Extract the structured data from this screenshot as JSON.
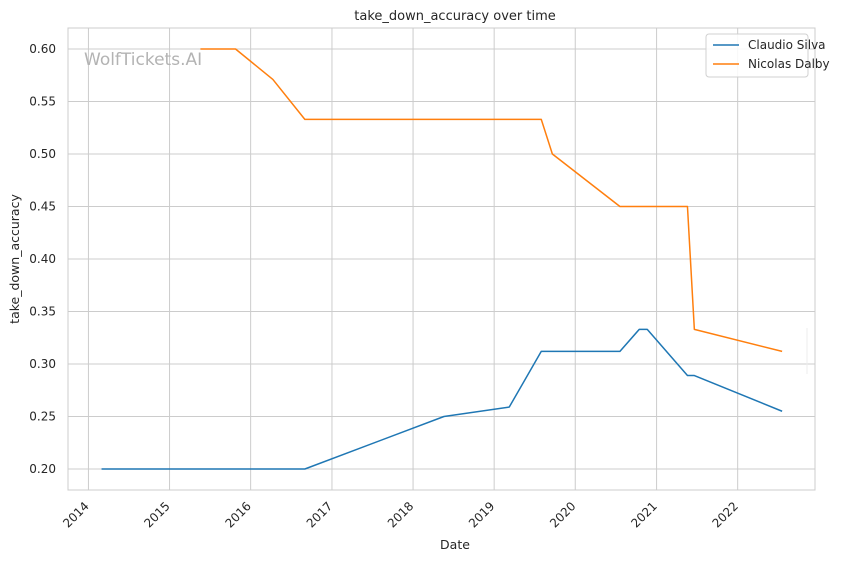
{
  "chart_data": {
    "type": "line",
    "title": "take_down_accuracy over time",
    "xlabel": "Date",
    "ylabel": "take_down_accuracy",
    "watermark": "WolfTickets.AI",
    "x_ticks": [
      "2014",
      "2015",
      "2016",
      "2017",
      "2018",
      "2019",
      "2020",
      "2021",
      "2022"
    ],
    "y_ticks": [
      "0.20",
      "0.25",
      "0.30",
      "0.35",
      "0.40",
      "0.45",
      "0.50",
      "0.55",
      "0.60"
    ],
    "xlim": [
      "2013-10-01",
      "2022-12-15"
    ],
    "ylim": [
      0.18,
      0.62
    ],
    "grid": true,
    "legend_position": "top-right",
    "series": [
      {
        "name": "Claudio Silva",
        "color": "#1f77b4",
        "points": [
          [
            "2014-03-01",
            0.2
          ],
          [
            "2016-09-01",
            0.2
          ],
          [
            "2018-05-20",
            0.25
          ],
          [
            "2019-03-10",
            0.259
          ],
          [
            "2019-08-01",
            0.312
          ],
          [
            "2020-07-20",
            0.312
          ],
          [
            "2020-10-15",
            0.333
          ],
          [
            "2020-11-20",
            0.333
          ],
          [
            "2021-05-20",
            0.289
          ],
          [
            "2021-06-20",
            0.289
          ],
          [
            "2022-07-20",
            0.255
          ]
        ]
      },
      {
        "name": "Nicolas Dalby",
        "color": "#ff7f0e",
        "points": [
          [
            "2015-05-20",
            0.6
          ],
          [
            "2015-10-25",
            0.6
          ],
          [
            "2016-04-10",
            0.571
          ],
          [
            "2016-09-01",
            0.533
          ],
          [
            "2019-08-01",
            0.533
          ],
          [
            "2019-09-20",
            0.5
          ],
          [
            "2020-07-20",
            0.45
          ],
          [
            "2021-05-20",
            0.45
          ],
          [
            "2021-06-20",
            0.333
          ],
          [
            "2022-07-20",
            0.312
          ]
        ]
      }
    ]
  }
}
